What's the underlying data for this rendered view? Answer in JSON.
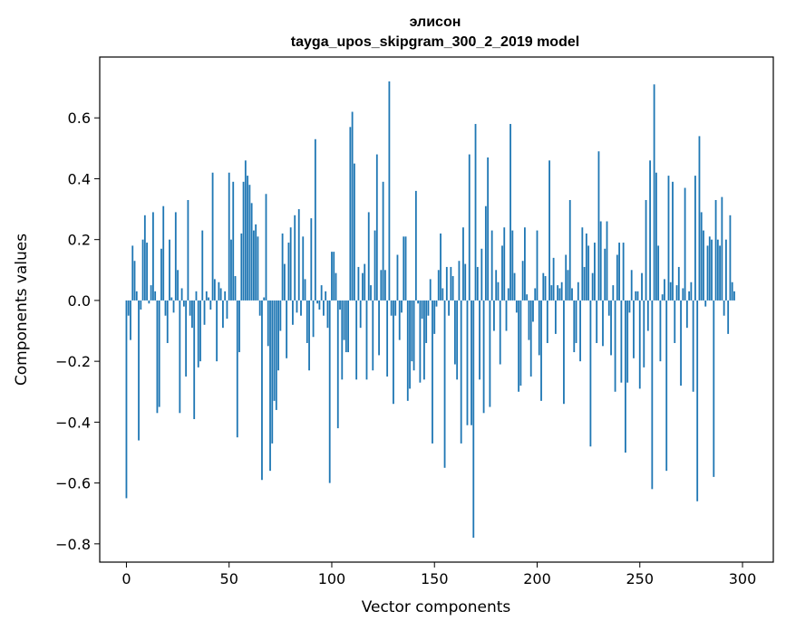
{
  "chart_data": {
    "type": "bar",
    "title": "элисон",
    "subtitle": "tayga_upos_skipgram_300_2_2019 model",
    "xlabel": "Vector components",
    "ylabel": "Components values",
    "xlim": [
      -13,
      315
    ],
    "ylim": [
      -0.86,
      0.8
    ],
    "xticks": [
      0,
      50,
      100,
      150,
      200,
      250,
      300
    ],
    "xtick_labels": [
      "0",
      "50",
      "100",
      "150",
      "200",
      "250",
      "300"
    ],
    "yticks": [
      -0.8,
      -0.6,
      -0.4,
      -0.2,
      0.0,
      0.2,
      0.4,
      0.6
    ],
    "ytick_labels": [
      "−0.8",
      "−0.6",
      "−0.4",
      "−0.2",
      "0.0",
      "0.2",
      "0.4",
      "0.6"
    ],
    "color": "#1f77b4",
    "values": [
      -0.65,
      -0.05,
      -0.13,
      0.18,
      0.13,
      0.03,
      -0.46,
      -0.03,
      0.2,
      0.28,
      0.19,
      -0.01,
      0.05,
      0.29,
      0.03,
      -0.37,
      -0.35,
      0.17,
      0.31,
      -0.05,
      -0.14,
      0.2,
      0.01,
      -0.04,
      0.29,
      0.1,
      -0.37,
      0.04,
      -0.02,
      -0.25,
      0.33,
      -0.05,
      -0.09,
      -0.39,
      0.03,
      -0.22,
      -0.2,
      0.23,
      -0.08,
      0.03,
      0.01,
      -0.03,
      0.42,
      0.07,
      -0.2,
      0.06,
      0.04,
      -0.09,
      0.03,
      -0.06,
      0.42,
      0.2,
      0.39,
      0.08,
      -0.45,
      -0.17,
      0.22,
      0.39,
      0.46,
      0.41,
      0.38,
      0.32,
      0.23,
      0.25,
      0.21,
      -0.05,
      -0.59,
      0.01,
      0.35,
      -0.15,
      -0.56,
      -0.47,
      -0.33,
      -0.36,
      -0.23,
      -0.1,
      0.22,
      0.12,
      -0.19,
      0.19,
      0.24,
      -0.08,
      0.28,
      -0.04,
      0.3,
      -0.05,
      0.21,
      0.07,
      -0.14,
      -0.23,
      0.27,
      -0.12,
      0.53,
      -0.01,
      -0.03,
      0.05,
      -0.05,
      0.03,
      -0.09,
      -0.6,
      0.16,
      0.16,
      0.09,
      -0.42,
      -0.03,
      -0.26,
      -0.13,
      -0.17,
      -0.17,
      0.57,
      0.62,
      0.45,
      -0.26,
      0.11,
      -0.09,
      0.09,
      0.12,
      -0.26,
      0.29,
      0.05,
      -0.23,
      0.23,
      0.48,
      -0.18,
      0.1,
      0.39,
      0.1,
      -0.25,
      0.72,
      -0.05,
      -0.34,
      -0.05,
      0.15,
      -0.13,
      -0.04,
      0.21,
      0.21,
      -0.33,
      -0.29,
      -0.2,
      -0.23,
      0.36,
      -0.01,
      -0.27,
      -0.06,
      -0.26,
      -0.14,
      -0.05,
      0.07,
      -0.47,
      -0.11,
      -0.02,
      0.1,
      0.22,
      0.04,
      -0.55,
      0.11,
      -0.05,
      0.11,
      0.08,
      -0.21,
      -0.26,
      0.13,
      -0.47,
      0.24,
      0.12,
      -0.41,
      0.48,
      -0.41,
      -0.78,
      0.58,
      0.11,
      -0.26,
      0.17,
      -0.37,
      0.31,
      0.47,
      -0.35,
      0.23,
      -0.1,
      0.1,
      0.06,
      -0.21,
      0.18,
      0.24,
      -0.1,
      0.04,
      0.58,
      0.23,
      0.09,
      -0.04,
      -0.3,
      -0.28,
      0.13,
      0.24,
      0.02,
      -0.13,
      -0.25,
      -0.07,
      0.04,
      0.23,
      -0.18,
      -0.33,
      0.09,
      0.08,
      -0.14,
      0.46,
      0.05,
      0.14,
      -0.11,
      0.05,
      0.04,
      0.06,
      -0.34,
      0.15,
      0.1,
      0.33,
      0.04,
      -0.17,
      -0.14,
      0.06,
      -0.2,
      0.24,
      0.11,
      0.22,
      0.18,
      -0.48,
      0.09,
      0.19,
      -0.14,
      0.49,
      0.26,
      -0.15,
      0.17,
      0.26,
      -0.05,
      -0.18,
      0.05,
      -0.3,
      0.15,
      0.19,
      -0.27,
      0.19,
      -0.5,
      -0.27,
      -0.04,
      0.1,
      -0.19,
      0.03,
      0.03,
      -0.29,
      0.09,
      -0.22,
      0.33,
      -0.1,
      0.46,
      -0.62,
      0.71,
      0.42,
      0.18,
      -0.2,
      0.02,
      0.07,
      -0.56,
      0.41,
      0.06,
      0.39,
      -0.14,
      0.05,
      0.11,
      -0.28,
      0.04,
      0.37,
      -0.09,
      0.03,
      0.06,
      -0.3,
      0.41,
      -0.66,
      0.54,
      0.29,
      0.23,
      -0.02,
      0.18,
      0.21,
      0.2,
      -0.58,
      0.33,
      0.2,
      0.18,
      0.34,
      -0.05,
      0.2,
      -0.11,
      0.28,
      0.06,
      0.03
    ]
  }
}
